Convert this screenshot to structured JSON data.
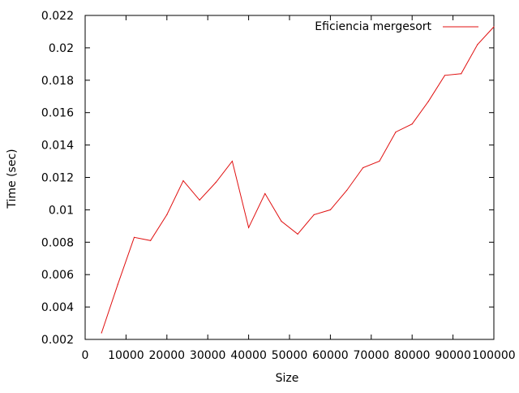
{
  "chart_data": {
    "type": "line",
    "title": "",
    "xlabel": "Size",
    "ylabel": "Time (sec)",
    "xlim": [
      0,
      100000
    ],
    "ylim": [
      0.002,
      0.022
    ],
    "grid": false,
    "legend_position": "top-right",
    "x_ticks": [
      {
        "value": 0,
        "label": "0"
      },
      {
        "value": 10000,
        "label": "10000"
      },
      {
        "value": 20000,
        "label": "20000"
      },
      {
        "value": 30000,
        "label": "30000"
      },
      {
        "value": 40000,
        "label": "40000"
      },
      {
        "value": 50000,
        "label": "50000"
      },
      {
        "value": 60000,
        "label": "60000"
      },
      {
        "value": 70000,
        "label": "70000"
      },
      {
        "value": 80000,
        "label": "80000"
      },
      {
        "value": 90000,
        "label": "90000"
      },
      {
        "value": 100000,
        "label": "100000"
      }
    ],
    "y_ticks": [
      {
        "value": 0.002,
        "label": "0.002"
      },
      {
        "value": 0.004,
        "label": "0.004"
      },
      {
        "value": 0.006,
        "label": "0.006"
      },
      {
        "value": 0.008,
        "label": "0.008"
      },
      {
        "value": 0.01,
        "label": "0.01"
      },
      {
        "value": 0.012,
        "label": "0.012"
      },
      {
        "value": 0.014,
        "label": "0.014"
      },
      {
        "value": 0.016,
        "label": "0.016"
      },
      {
        "value": 0.018,
        "label": "0.018"
      },
      {
        "value": 0.02,
        "label": "0.02"
      },
      {
        "value": 0.022,
        "label": "0.022"
      }
    ],
    "series": [
      {
        "name": "Eficiencia mergesort",
        "color": "#e01010",
        "x": [
          4000,
          8000,
          12000,
          16000,
          20000,
          24000,
          28000,
          32000,
          36000,
          40000,
          44000,
          48000,
          52000,
          56000,
          60000,
          64000,
          68000,
          72000,
          76000,
          80000,
          84000,
          88000,
          92000,
          96000,
          100000
        ],
        "y": [
          0.0024,
          0.0054,
          0.0083,
          0.0081,
          0.0097,
          0.0118,
          0.0106,
          0.0117,
          0.013,
          0.0089,
          0.011,
          0.0093,
          0.0085,
          0.0097,
          0.01,
          0.0112,
          0.0126,
          0.013,
          0.0148,
          0.0153,
          0.0167,
          0.0183,
          0.0184,
          0.0202,
          0.0213
        ]
      }
    ]
  }
}
